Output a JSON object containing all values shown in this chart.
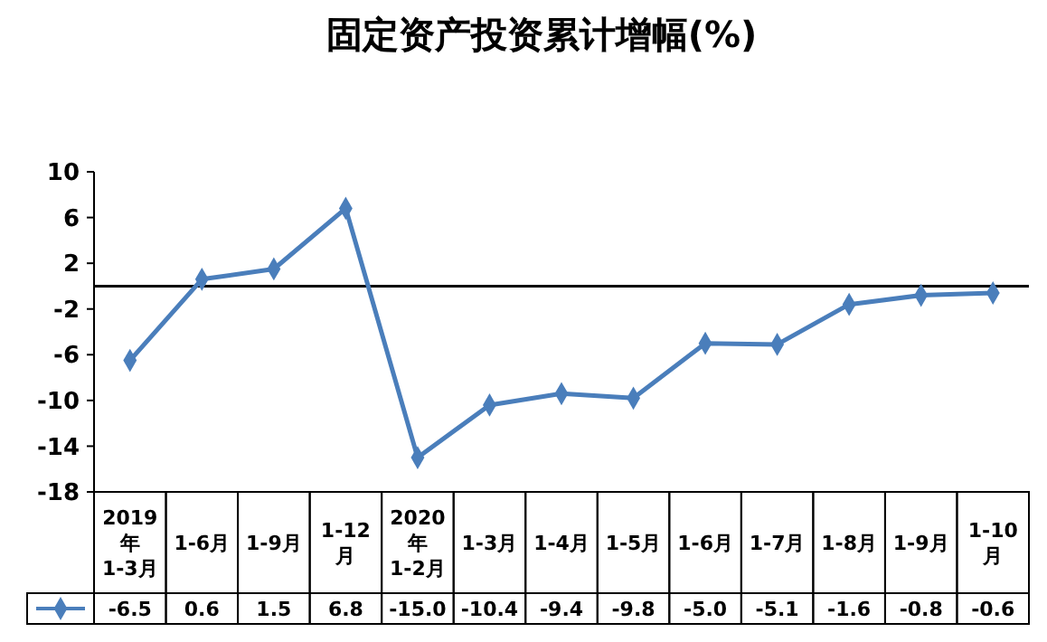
{
  "chart_data": {
    "type": "line",
    "title": "固定资产投资累计增幅(%)",
    "categories": [
      "2019\n年\n1-3月",
      "1-6月",
      "1-9月",
      "1-12\n月",
      "2020\n年\n1-2月",
      "1-3月",
      "1-4月",
      "1-5月",
      "1-6月",
      "1-7月",
      "1-8月",
      "1-9月",
      "1-10\n月"
    ],
    "series": [
      {
        "color": "#4a7ebb",
        "values": [
          -6.5,
          0.6,
          1.5,
          6.8,
          -15.0,
          -10.4,
          -9.4,
          -9.8,
          -5.0,
          -5.1,
          -1.6,
          -0.8,
          -0.6
        ],
        "value_labels": [
          "-6.5",
          "0.6",
          "1.5",
          "6.8",
          "-15.0",
          "-10.4",
          "-9.4",
          "-9.8",
          "-5.0",
          "-5.1",
          "-1.6",
          "-0.8",
          "-0.6"
        ]
      }
    ],
    "ylim": [
      -18,
      10
    ],
    "yticks": [
      10,
      6,
      2,
      -2,
      -6,
      -10,
      -14,
      -18
    ],
    "marker": "diamond",
    "grid": false
  }
}
